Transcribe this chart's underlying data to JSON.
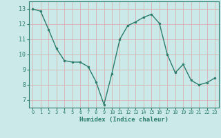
{
  "x": [
    0,
    1,
    2,
    3,
    4,
    5,
    6,
    7,
    8,
    9,
    10,
    11,
    12,
    13,
    14,
    15,
    16,
    17,
    18,
    19,
    20,
    21,
    22,
    23
  ],
  "y": [
    13.0,
    12.85,
    11.65,
    10.4,
    9.6,
    9.5,
    9.5,
    9.2,
    8.2,
    6.7,
    8.75,
    11.0,
    11.9,
    12.15,
    12.45,
    12.65,
    12.05,
    10.0,
    8.8,
    9.35,
    8.3,
    8.0,
    8.15,
    8.45
  ],
  "line_color": "#2a7d6b",
  "marker": "o",
  "marker_size": 2.0,
  "bg_color": "#cce9e9",
  "grid_color": "#b8d8d8",
  "xlabel": "Humidex (Indice chaleur)",
  "ylim": [
    6.5,
    13.5
  ],
  "xlim": [
    -0.5,
    23.5
  ],
  "yticks": [
    7,
    8,
    9,
    10,
    11,
    12,
    13
  ],
  "xticks": [
    0,
    1,
    2,
    3,
    4,
    5,
    6,
    7,
    8,
    9,
    10,
    11,
    12,
    13,
    14,
    15,
    16,
    17,
    18,
    19,
    20,
    21,
    22,
    23
  ],
  "tick_color": "#2a7d6b",
  "xlabel_fontsize": 6.5,
  "xtick_fontsize": 5.0,
  "ytick_fontsize": 6.0
}
